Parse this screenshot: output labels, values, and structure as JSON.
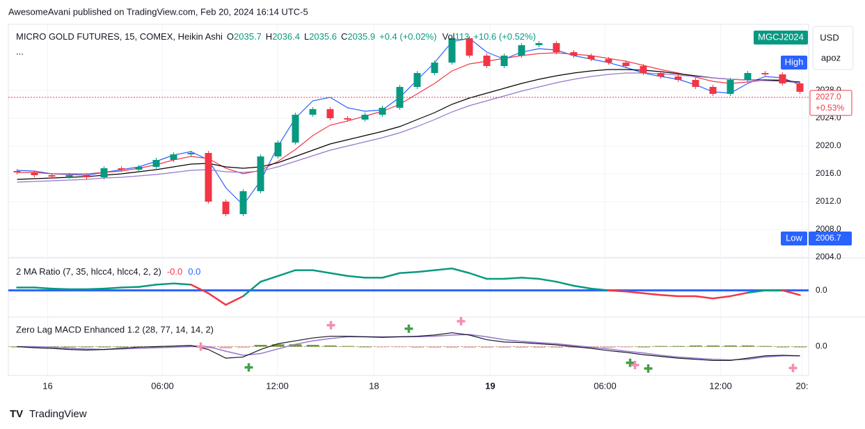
{
  "header": {
    "published": "AwesomeAvani published on TradingView.com, Feb 20, 2024 16:14 UTC-5",
    "symbol": "MICRO GOLD FUTURES, 15, COMEX, Heikin Ashi",
    "o_label": "O",
    "o": "2035.7",
    "h_label": "H",
    "h": "2036.4",
    "l_label": "L",
    "l": "2035.6",
    "c_label": "C",
    "c": "2035.9",
    "change": "+0.4 (+0.02%)",
    "vol_label": "Vol",
    "vol": "113",
    "vol_change": "+10.6 (+0.52%)",
    "more": "...",
    "ticker": "MGCJ2024",
    "currency": "USD",
    "user": "apoz",
    "high_badge": "High",
    "low_badge": "Low",
    "footer": "TradingView"
  },
  "chart_data": [
    {
      "type": "candlestick",
      "xlim": [
        -0.5,
        45.5
      ],
      "ylim": [
        2004,
        2037.5
      ],
      "yticks": [
        {
          "value": 2004,
          "label": "2004.0"
        },
        {
          "value": 2008,
          "label": "2008.0"
        },
        {
          "value": 2012,
          "label": "2012.0"
        },
        {
          "value": 2016,
          "label": "2016.0"
        },
        {
          "value": 2020,
          "label": "2020.0"
        },
        {
          "value": 2024,
          "label": "2024.0"
        },
        {
          "value": 2028,
          "label": "2028.0"
        }
      ],
      "xticks": [
        {
          "value": 1.76,
          "label": "16"
        },
        {
          "value": 8.36,
          "label": "06:00"
        },
        {
          "value": 14.96,
          "label": "12:00"
        },
        {
          "value": 20.52,
          "label": "18"
        },
        {
          "value": 27.2,
          "label": "19"
        },
        {
          "value": 33.8,
          "label": "06:00"
        },
        {
          "value": 40.44,
          "label": "12:00"
        },
        {
          "value": 45.12,
          "label": "20:"
        }
      ],
      "up_color": "#089981",
      "down_color": "#f23645",
      "open": [
        2016.4,
        2016.2,
        2015.8,
        2015.6,
        2015.8,
        2015.5,
        2016.8,
        2016.6,
        2017.0,
        2018.0,
        2018.8,
        2019.0,
        2012.0,
        2010.2,
        2013.5,
        2018.5,
        2020.5,
        2024.5,
        2025.3,
        2024.0,
        2023.8,
        2024.5,
        2025.5,
        2028.5,
        2030.5,
        2032.0,
        2035.5,
        2033.0,
        2031.5,
        2033.0,
        2034.5,
        2034.8,
        2033.5,
        2033.0,
        2032.5,
        2032.0,
        2031.5,
        2030.5,
        2030.0,
        2029.5,
        2028.5,
        2027.5,
        2029.5,
        2030.5,
        2030.3,
        2029.0
      ],
      "high": [
        2016.7,
        2016.5,
        2016.1,
        2016.1,
        2016.1,
        2017.1,
        2017.1,
        2017.3,
        2018.3,
        2019.1,
        2019.3,
        2019.3,
        2012.3,
        2013.8,
        2018.8,
        2020.8,
        2024.8,
        2025.6,
        2025.6,
        2024.3,
        2024.8,
        2025.8,
        2028.8,
        2030.8,
        2032.3,
        2035.8,
        2035.8,
        2033.3,
        2033.3,
        2034.8,
        2035.1,
        2035.1,
        2033.8,
        2033.3,
        2032.8,
        2032.3,
        2031.8,
        2030.8,
        2030.3,
        2029.8,
        2028.8,
        2029.8,
        2030.8,
        2030.8,
        2030.6,
        2029.3
      ],
      "low": [
        2015.9,
        2015.5,
        2015.3,
        2015.3,
        2015.2,
        2015.2,
        2016.3,
        2016.3,
        2016.7,
        2017.7,
        2018.5,
        2011.7,
        2009.9,
        2009.9,
        2013.2,
        2018.2,
        2020.2,
        2024.2,
        2023.7,
        2023.5,
        2023.5,
        2024.2,
        2025.2,
        2028.2,
        2030.2,
        2031.7,
        2032.7,
        2031.2,
        2031.2,
        2032.7,
        2034.2,
        2033.2,
        2032.7,
        2032.2,
        2031.7,
        2031.2,
        2030.2,
        2029.7,
        2029.2,
        2028.2,
        2027.2,
        2027.2,
        2029.2,
        2030.0,
        2028.7,
        2027.5
      ],
      "close": [
        2016.2,
        2015.8,
        2015.6,
        2015.8,
        2015.5,
        2016.8,
        2016.6,
        2017.0,
        2018.0,
        2018.8,
        2019.0,
        2012.0,
        2010.2,
        2013.5,
        2018.5,
        2020.5,
        2024.5,
        2025.3,
        2024.0,
        2023.8,
        2024.5,
        2025.5,
        2028.5,
        2030.5,
        2032.0,
        2035.5,
        2033.0,
        2031.5,
        2033.0,
        2034.5,
        2034.8,
        2033.5,
        2033.0,
        2032.5,
        2032.0,
        2031.5,
        2030.5,
        2030.0,
        2029.5,
        2028.5,
        2027.5,
        2029.5,
        2030.5,
        2030.3,
        2029.0,
        2027.8
      ],
      "series": [
        {
          "color": "#2962ff",
          "values": [
            2016.5,
            2016.4,
            2016,
            2015.9,
            2015.8,
            2016.2,
            2016.6,
            2017,
            2017.8,
            2018.7,
            2019.2,
            2018,
            2014,
            2011.5,
            2015,
            2020,
            2024,
            2026.5,
            2027,
            2025.5,
            2025,
            2025.2,
            2027,
            2029.5,
            2032,
            2035,
            2035.5,
            2033.5,
            2032.5,
            2033.5,
            2034,
            2033.8,
            2033,
            2032.5,
            2032,
            2031.3,
            2030.5,
            2030,
            2029.6,
            2028.8,
            2027.8,
            2027.6,
            2029,
            2030,
            2029.8,
            2028.8
          ]
        },
        {
          "color": "#f23645",
          "values": [
            2016.2,
            2016.2,
            2016,
            2016,
            2016,
            2016.2,
            2016.4,
            2016.8,
            2017.3,
            2018,
            2018.5,
            2018.2,
            2016.8,
            2016,
            2016.5,
            2017.8,
            2019.5,
            2021.5,
            2023,
            2023.6,
            2024.3,
            2025,
            2026,
            2027.5,
            2029,
            2030.8,
            2031.8,
            2032.2,
            2032.6,
            2033,
            2033.3,
            2033.4,
            2033.2,
            2033,
            2032.6,
            2032.2,
            2031.6,
            2031,
            2030.5,
            2029.9,
            2029.3,
            2029,
            2029.2,
            2029.5,
            2029.5,
            2029.1
          ]
        },
        {
          "color": "#000000",
          "values": [
            2015.2,
            2015.3,
            2015.4,
            2015.5,
            2015.6,
            2015.8,
            2016,
            2016.3,
            2016.6,
            2017,
            2017.4,
            2017.5,
            2017,
            2016.8,
            2017,
            2017.6,
            2018.5,
            2019.4,
            2020.3,
            2020.9,
            2021.5,
            2022.1,
            2022.8,
            2023.8,
            2024.8,
            2026,
            2026.9,
            2027.6,
            2028.3,
            2029,
            2029.6,
            2030.1,
            2030.5,
            2030.8,
            2031,
            2031,
            2030.9,
            2030.7,
            2030.4,
            2030.1,
            2029.8,
            2029.6,
            2029.5,
            2029.5,
            2029.4,
            2029.2
          ]
        },
        {
          "color": "#9575cd",
          "values": [
            2014.8,
            2014.9,
            2015,
            2015.1,
            2015.2,
            2015.4,
            2015.5,
            2015.7,
            2015.9,
            2016.2,
            2016.5,
            2016.6,
            2016.3,
            2016.2,
            2016.4,
            2017,
            2017.8,
            2018.6,
            2019.4,
            2020,
            2020.6,
            2021.2,
            2021.9,
            2022.8,
            2023.8,
            2024.9,
            2025.8,
            2026.5,
            2027.2,
            2027.9,
            2028.5,
            2029.1,
            2029.6,
            2030,
            2030.3,
            2030.5,
            2030.5,
            2030.4,
            2030.2,
            2030,
            2029.8,
            2029.6,
            2029.5,
            2029.4,
            2029.3,
            2029.1
          ]
        }
      ],
      "last_price": {
        "value": 2027,
        "label": "2027.0",
        "change": "+0.53%"
      },
      "low_mark": {
        "value": 2006.7,
        "label": "2006.7"
      }
    },
    {
      "type": "line",
      "title": "2 MA Ratio (7, 35, hlcc4, hlcc4, 2, 2)",
      "legend_values": [
        "-0.0",
        "0.0"
      ],
      "ylim": [
        -0.45,
        0.55
      ],
      "yticks": [
        {
          "value": 0,
          "label": "0.0"
        }
      ],
      "up_color": "#089981",
      "down_color": "#f23645",
      "zero_color": "#2962ff",
      "values": [
        0.05,
        0.05,
        0.03,
        0.02,
        0.02,
        0.03,
        0.05,
        0.06,
        0.1,
        0.12,
        0.1,
        -0.05,
        -0.25,
        -0.1,
        0.15,
        0.25,
        0.35,
        0.35,
        0.3,
        0.25,
        0.22,
        0.22,
        0.3,
        0.32,
        0.35,
        0.38,
        0.3,
        0.2,
        0.2,
        0.22,
        0.2,
        0.15,
        0.08,
        0.03,
        0,
        -0.02,
        -0.05,
        -0.08,
        -0.1,
        -0.1,
        -0.14,
        -0.1,
        -0.04,
        0,
        0,
        -0.08
      ]
    },
    {
      "type": "macd",
      "title": "Zero Lag MACD Enhanced 1.2 (28, 77, 14, 14, 2)",
      "ylim": [
        -0.5,
        0.5
      ],
      "yticks": [
        {
          "value": 0,
          "label": "0.0"
        }
      ],
      "macd": [
        0,
        -0.02,
        -0.03,
        -0.05,
        -0.06,
        -0.05,
        -0.03,
        -0.01,
        0,
        0.01,
        0.02,
        -0.05,
        -0.2,
        -0.18,
        -0.05,
        0.05,
        0.1,
        0.15,
        0.18,
        0.18,
        0.17,
        0.16,
        0.17,
        0.18,
        0.2,
        0.24,
        0.2,
        0.12,
        0.08,
        0.07,
        0.05,
        0.03,
        0,
        -0.03,
        -0.07,
        -0.1,
        -0.14,
        -0.17,
        -0.2,
        -0.22,
        -0.24,
        -0.24,
        -0.2,
        -0.16,
        -0.15,
        -0.16
      ],
      "signal": [
        0,
        0,
        -0.01,
        -0.03,
        -0.04,
        -0.05,
        -0.04,
        -0.03,
        -0.02,
        -0.01,
        0,
        0,
        -0.08,
        -0.15,
        -0.12,
        -0.04,
        0.04,
        0.1,
        0.14,
        0.17,
        0.17,
        0.17,
        0.17,
        0.17,
        0.18,
        0.2,
        0.21,
        0.17,
        0.12,
        0.09,
        0.07,
        0.05,
        0.02,
        -0.01,
        -0.04,
        -0.08,
        -0.11,
        -0.15,
        -0.18,
        -0.2,
        -0.22,
        -0.23,
        -0.22,
        -0.18,
        -0.16,
        -0.16
      ],
      "histogram": [
        0,
        0,
        0,
        0,
        0,
        0,
        0,
        0,
        0,
        0,
        0.02,
        -0.03,
        -0.03,
        -0.02,
        0.03,
        0.04,
        0.04,
        0.03,
        0.02,
        0.01,
        0,
        -0.01,
        -0.01,
        -0.02,
        -0.02,
        -0.02,
        -0.02,
        -0.02,
        -0.02,
        -0.02,
        -0.02,
        -0.02,
        -0.02,
        -0.02,
        -0.02,
        -0.01,
        0,
        0.01,
        0.01,
        0.02,
        0.02,
        0.02,
        0.02,
        0.01,
        0,
        0
      ],
      "macd_color": "#131722",
      "signal_color": "#9575cd",
      "hist_up": "#6b9a3a",
      "hist_down": "#f7a1ad",
      "signals": [
        {
          "x": 10.56,
          "value": 0,
          "color": "#f48fb1"
        },
        {
          "x": 13.32,
          "value": -0.36,
          "color": "#43a047"
        },
        {
          "x": 18.04,
          "value": 0.37,
          "color": "#f48fb1"
        },
        {
          "x": 22.52,
          "value": 0.31,
          "color": "#43a047"
        },
        {
          "x": 25.52,
          "value": 0.44,
          "color": "#f48fb1"
        },
        {
          "x": 35.24,
          "value": -0.28,
          "color": "#43a047"
        },
        {
          "x": 35.52,
          "value": -0.32,
          "color": "#f48fb1"
        },
        {
          "x": 36.28,
          "value": -0.38,
          "color": "#43a047"
        },
        {
          "x": 44.6,
          "value": -0.37,
          "color": "#f48fb1"
        }
      ]
    }
  ]
}
